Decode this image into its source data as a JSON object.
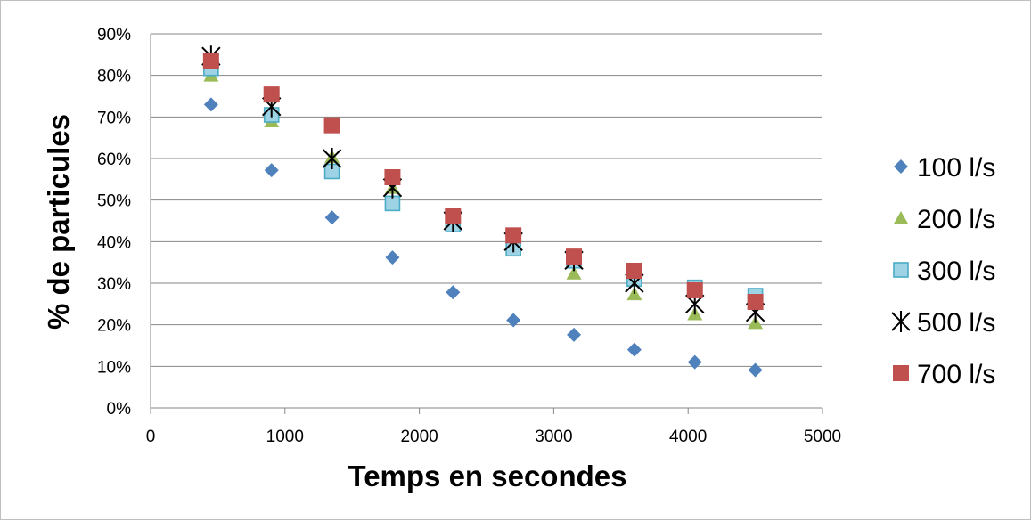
{
  "chart_data": {
    "type": "scatter",
    "title": "",
    "xlabel": "Temps en secondes",
    "ylabel": "% de particules",
    "xlim": [
      0,
      5000
    ],
    "ylim": [
      0,
      90
    ],
    "x_ticks": [
      0,
      1000,
      2000,
      3000,
      4000,
      5000
    ],
    "x_tick_labels": [
      "0",
      "1000",
      "2000",
      "3000",
      "4000",
      "5000"
    ],
    "y_ticks": [
      0,
      10,
      20,
      30,
      40,
      50,
      60,
      70,
      80,
      90
    ],
    "y_tick_labels": [
      "0%",
      "10%",
      "20%",
      "30%",
      "40%",
      "50%",
      "60%",
      "70%",
      "80%",
      "90%"
    ],
    "grid": "horizontal",
    "legend_position": "right",
    "x": [
      450,
      900,
      1350,
      1800,
      2250,
      2700,
      3150,
      3600,
      4050,
      4500
    ],
    "series": [
      {
        "name": "100 l/s",
        "marker": "diamond",
        "color": "#4F81BD",
        "values": [
          73,
          57.2,
          45.8,
          36.2,
          27.8,
          21.1,
          17.6,
          14,
          11,
          9.1
        ]
      },
      {
        "name": "200 l/s",
        "marker": "triangle",
        "color": "#9BBB59",
        "values": [
          80,
          69,
          60.4,
          53,
          44,
          40,
          32.4,
          27.4,
          22.6,
          20.5
        ]
      },
      {
        "name": "300 l/s",
        "marker": "square-outline",
        "color": "#4BACC6",
        "values": [
          81.7,
          70.5,
          56.9,
          49.2,
          44.1,
          38.3,
          35.4,
          31,
          29,
          27
        ]
      },
      {
        "name": "500 l/s",
        "marker": "asterisk",
        "color": "#000000",
        "values": [
          84.6,
          72.5,
          60,
          53,
          45,
          40,
          35.5,
          30,
          25,
          23
        ]
      },
      {
        "name": "700 l/s",
        "marker": "square",
        "color": "#C0504D",
        "values": [
          83.5,
          75.4,
          68,
          55.5,
          46.1,
          41.5,
          36.4,
          33,
          28.3,
          25.5
        ]
      }
    ]
  }
}
